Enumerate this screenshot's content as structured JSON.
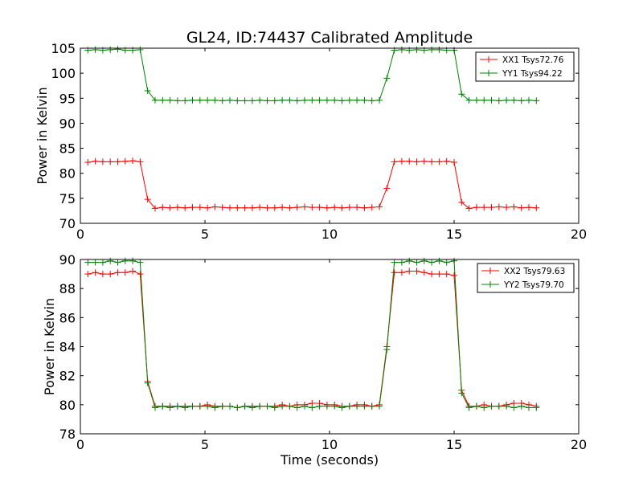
{
  "chart_data": [
    {
      "type": "line",
      "title": "GL24, ID:74437 Calibrated Amplitude",
      "xlabel": "",
      "ylabel": "Power in Kelvin",
      "xlim": [
        0,
        20
      ],
      "ylim": [
        70,
        105
      ],
      "xticks": [
        0,
        5,
        10,
        15,
        20
      ],
      "yticks": [
        70,
        75,
        80,
        85,
        90,
        95,
        100,
        105
      ],
      "legend_position": "top-right",
      "x": [
        0.3,
        0.6,
        0.9,
        1.2,
        1.5,
        1.8,
        2.1,
        2.4,
        2.7,
        3.0,
        3.3,
        3.6,
        3.9,
        4.2,
        4.5,
        4.8,
        5.1,
        5.4,
        5.7,
        6.0,
        6.3,
        6.6,
        6.9,
        7.2,
        7.5,
        7.8,
        8.1,
        8.4,
        8.7,
        9.0,
        9.3,
        9.6,
        9.9,
        10.2,
        10.5,
        10.8,
        11.1,
        11.4,
        11.7,
        12.0,
        12.3,
        12.6,
        12.9,
        13.2,
        13.5,
        13.8,
        14.1,
        14.4,
        14.7,
        15.0,
        15.3,
        15.6,
        15.9,
        16.2,
        16.5,
        16.8,
        17.1,
        17.4,
        17.7,
        18.0,
        18.3
      ],
      "series": [
        {
          "name": "XX1 Tsys72.76",
          "color": "#ff0000",
          "values": [
            82.2,
            82.4,
            82.3,
            82.3,
            82.3,
            82.4,
            82.5,
            82.3,
            74.8,
            73.0,
            73.2,
            73.1,
            73.2,
            73.1,
            73.2,
            73.2,
            73.1,
            73.3,
            73.2,
            73.1,
            73.1,
            73.1,
            73.1,
            73.2,
            73.1,
            73.1,
            73.2,
            73.1,
            73.2,
            73.3,
            73.2,
            73.2,
            73.1,
            73.2,
            73.1,
            73.2,
            73.2,
            73.1,
            73.2,
            73.3,
            77.0,
            82.3,
            82.4,
            82.4,
            82.3,
            82.4,
            82.3,
            82.3,
            82.4,
            82.2,
            74.2,
            73.0,
            73.2,
            73.2,
            73.2,
            73.3,
            73.2,
            73.3,
            73.1,
            73.2,
            73.1
          ]
        },
        {
          "name": "YY1 Tsys94.22",
          "color": "#008000",
          "values": [
            104.6,
            104.7,
            104.6,
            104.7,
            104.8,
            104.6,
            104.6,
            104.7,
            96.5,
            94.6,
            94.6,
            94.6,
            94.5,
            94.5,
            94.6,
            94.6,
            94.6,
            94.6,
            94.5,
            94.6,
            94.5,
            94.5,
            94.5,
            94.6,
            94.5,
            94.5,
            94.6,
            94.6,
            94.5,
            94.6,
            94.6,
            94.6,
            94.6,
            94.6,
            94.5,
            94.6,
            94.6,
            94.6,
            94.5,
            94.6,
            99.0,
            104.6,
            104.7,
            104.6,
            104.7,
            104.6,
            104.7,
            104.7,
            104.6,
            104.6,
            95.8,
            94.6,
            94.6,
            94.6,
            94.6,
            94.5,
            94.6,
            94.6,
            94.5,
            94.6,
            94.5
          ]
        }
      ]
    },
    {
      "type": "line",
      "title": "",
      "xlabel": "Time (seconds)",
      "ylabel": "Power in Kelvin",
      "xlim": [
        0,
        20
      ],
      "ylim": [
        78,
        90
      ],
      "xticks": [
        0,
        5,
        10,
        15,
        20
      ],
      "yticks": [
        78,
        80,
        82,
        84,
        86,
        88,
        90
      ],
      "legend_position": "top-right",
      "x": [
        0.3,
        0.6,
        0.9,
        1.2,
        1.5,
        1.8,
        2.1,
        2.4,
        2.7,
        3.0,
        3.3,
        3.6,
        3.9,
        4.2,
        4.5,
        4.8,
        5.1,
        5.4,
        5.7,
        6.0,
        6.3,
        6.6,
        6.9,
        7.2,
        7.5,
        7.8,
        8.1,
        8.4,
        8.7,
        9.0,
        9.3,
        9.6,
        9.9,
        10.2,
        10.5,
        10.8,
        11.1,
        11.4,
        11.7,
        12.0,
        12.3,
        12.6,
        12.9,
        13.2,
        13.5,
        13.8,
        14.1,
        14.4,
        14.7,
        15.0,
        15.3,
        15.6,
        15.9,
        16.2,
        16.5,
        16.8,
        17.1,
        17.4,
        17.7,
        18.0,
        18.3
      ],
      "series": [
        {
          "name": "XX2 Tsys79.63",
          "color": "#ff0000",
          "values": [
            89.0,
            89.1,
            89.0,
            89.0,
            89.1,
            89.1,
            89.2,
            89.0,
            81.6,
            79.9,
            79.9,
            79.9,
            79.9,
            79.9,
            79.9,
            79.9,
            80.0,
            79.9,
            79.9,
            79.9,
            79.8,
            79.9,
            79.9,
            79.9,
            79.9,
            79.9,
            80.0,
            79.9,
            80.0,
            80.0,
            80.1,
            80.1,
            80.0,
            80.0,
            79.9,
            79.9,
            80.0,
            80.0,
            79.9,
            80.0,
            84.0,
            89.1,
            89.1,
            89.2,
            89.2,
            89.1,
            89.0,
            89.0,
            89.0,
            88.9,
            81.0,
            79.9,
            79.9,
            80.0,
            79.9,
            79.9,
            80.0,
            80.1,
            80.1,
            80.0,
            79.9
          ]
        },
        {
          "name": "YY2 Tsys79.70",
          "color": "#008000",
          "values": [
            89.8,
            89.8,
            89.8,
            89.9,
            89.8,
            89.9,
            89.9,
            89.8,
            81.5,
            79.8,
            79.9,
            79.8,
            79.9,
            79.8,
            79.9,
            79.9,
            79.9,
            79.8,
            79.9,
            79.9,
            79.8,
            79.9,
            79.8,
            79.9,
            79.9,
            79.8,
            79.9,
            79.9,
            79.8,
            79.9,
            79.8,
            79.9,
            79.9,
            79.9,
            79.8,
            79.9,
            79.9,
            79.9,
            79.9,
            79.9,
            83.8,
            89.8,
            89.8,
            89.9,
            89.8,
            89.9,
            89.8,
            89.9,
            89.8,
            89.9,
            80.8,
            79.8,
            79.9,
            79.8,
            79.9,
            79.9,
            79.9,
            79.8,
            79.9,
            79.8,
            79.8
          ]
        }
      ]
    }
  ]
}
